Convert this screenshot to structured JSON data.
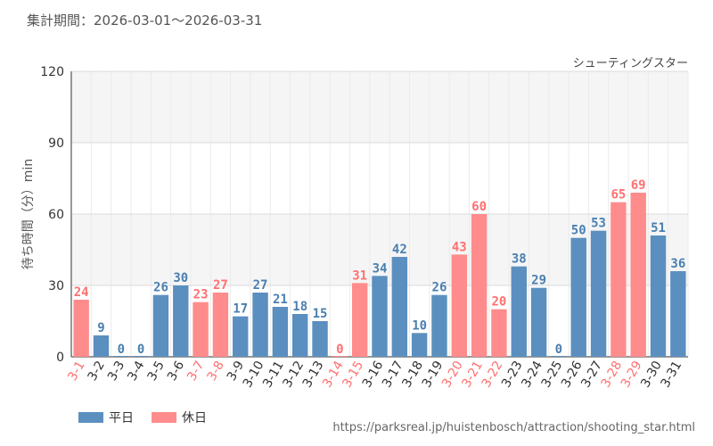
{
  "header": {
    "period": "集計期間：2026-03-01～2026-03-31"
  },
  "footer": {
    "url": "https://parksreal.jp/huistenbosch/attraction/shooting_star.html"
  },
  "colors": {
    "weekday": "#5b8fbf",
    "holiday": "#ff8c8c"
  },
  "chart_data": {
    "type": "bar",
    "title": "シューティングスター",
    "ylabel": "待ち時間（分）min",
    "ylim": [
      0,
      120
    ],
    "yticks": [
      0,
      30,
      60,
      90,
      120
    ],
    "grid": true,
    "legend_position": "bottom-left",
    "categories": [
      "3-1",
      "3-2",
      "3-3",
      "3-4",
      "3-5",
      "3-6",
      "3-7",
      "3-8",
      "3-9",
      "3-10",
      "3-11",
      "3-12",
      "3-13",
      "3-14",
      "3-15",
      "3-16",
      "3-17",
      "3-18",
      "3-19",
      "3-20",
      "3-21",
      "3-22",
      "3-23",
      "3-24",
      "3-25",
      "3-26",
      "3-27",
      "3-28",
      "3-29",
      "3-30",
      "3-31"
    ],
    "values": [
      24,
      9,
      0,
      0,
      26,
      30,
      23,
      27,
      17,
      27,
      21,
      18,
      15,
      0,
      31,
      34,
      42,
      10,
      26,
      43,
      60,
      20,
      38,
      29,
      0,
      50,
      53,
      65,
      69,
      51,
      36
    ],
    "day_type": [
      "休日",
      "平日",
      "平日",
      "平日",
      "平日",
      "平日",
      "休日",
      "休日",
      "平日",
      "平日",
      "平日",
      "平日",
      "平日",
      "休日",
      "休日",
      "平日",
      "平日",
      "平日",
      "平日",
      "休日",
      "休日",
      "休日",
      "平日",
      "平日",
      "平日",
      "平日",
      "平日",
      "休日",
      "休日",
      "平日",
      "平日"
    ],
    "series": [
      {
        "name": "平日"
      },
      {
        "name": "休日"
      }
    ]
  }
}
